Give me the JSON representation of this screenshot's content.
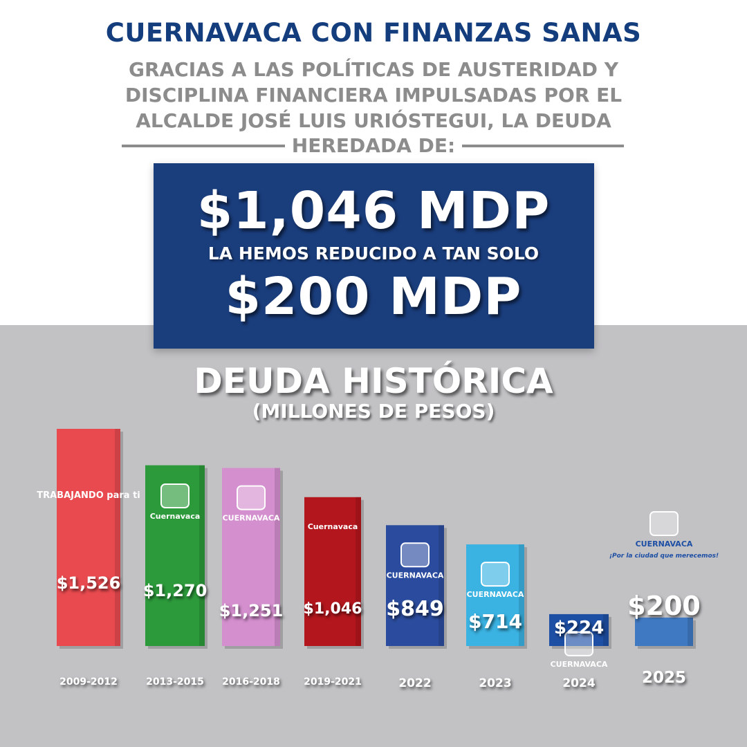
{
  "header": {
    "title": "CUERNAVACA CON FINANZAS SANAS",
    "subtitle_lines": [
      "GRACIAS A LAS POLÍTICAS DE AUSTERIDAD Y",
      "DISCIPLINA FINANCIERA IMPULSADAS POR EL",
      "ALCALDE JOSÉ LUIS URIÓSTEGUI, LA DEUDA"
    ],
    "subtitle_last": "HEREDADA DE:"
  },
  "highlight": {
    "inherited_debt": "$1,046 MDP",
    "reduced_text": "LA HEMOS REDUCIDO A TAN SOLO",
    "current_debt": "$200 MDP"
  },
  "chart_data": {
    "type": "bar",
    "title": "DEUDA HISTÓRICA",
    "subtitle": "(MILLONES DE PESOS)",
    "categories": [
      "2009-2012",
      "2013-2015",
      "2016-2018",
      "2019-2021",
      "2022",
      "2023",
      "2024",
      "2025"
    ],
    "values": [
      1526,
      1270,
      1251,
      1046,
      849,
      714,
      224,
      200
    ],
    "value_labels": [
      "$1,526",
      "$1,270",
      "$1,251",
      "$1,046",
      "$849",
      "$714",
      "$224",
      "$200"
    ],
    "logo_texts": [
      "TRABAJANDO para ti",
      "Cuernavaca",
      "CUERNAVACA",
      "Cuernavaca",
      "CUERNAVACA",
      "CUERNAVACA",
      "CUERNAVACA",
      "CUERNAVACA"
    ],
    "logo_extra": "¡Por la ciudad que merecemos!",
    "colors": [
      "#e94a4f",
      "#2c9a3b",
      "#d48fce",
      "#b3161c",
      "#2b4c9e",
      "#3ab2e2",
      "#1d4fa5",
      "#3f79c2"
    ]
  }
}
